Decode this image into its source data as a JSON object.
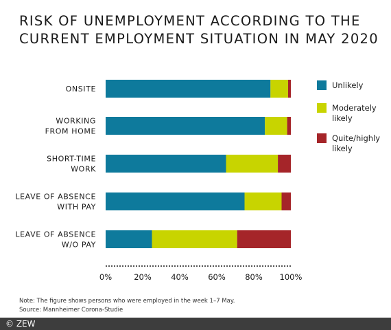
{
  "colors": {
    "unlikely": "#0e7a9c",
    "moderately": "#c8d400",
    "quite": "#a52529",
    "footer_bg": "#3d3d3d"
  },
  "chart_data": {
    "type": "bar",
    "orientation": "horizontal",
    "stacked": true,
    "title": "RISK OF UNEMPLOYMENT ACCORDING TO THE\nCURRENT EMPLOYMENT SITUATION IN MAY 2020",
    "categories": [
      [
        "ONSITE"
      ],
      [
        "WORKING",
        "FROM HOME"
      ],
      [
        "SHORT-TIME",
        "WORK"
      ],
      [
        "LEAVE OF ABSENCE",
        "WITH PAY"
      ],
      [
        "LEAVE OF ABSENCE",
        "W/O PAY"
      ]
    ],
    "series": [
      {
        "name": "Unlikely",
        "name_lines": [
          "Unlikely"
        ],
        "color": "#0e7a9c",
        "values": [
          89,
          86,
          65,
          75,
          25
        ]
      },
      {
        "name": "Moderately likely",
        "name_lines": [
          "Moderately",
          "likely"
        ],
        "color": "#c8d400",
        "values": [
          9.5,
          12,
          28,
          20,
          46
        ]
      },
      {
        "name": "Quite/highly likely",
        "name_lines": [
          "Quite/highly",
          "likely"
        ],
        "color": "#a52529",
        "values": [
          1.5,
          2,
          7,
          5,
          29
        ]
      }
    ],
    "xlim": [
      0,
      100
    ],
    "xticks": [
      "0%",
      "20%",
      "40%",
      "60%",
      "80%",
      "100%"
    ],
    "grid": false,
    "legend": "right"
  },
  "note": "Note: The figure shows persons who were employed in the week 1–7 May.",
  "source": "Source: Mannheimer Corona-Studie",
  "footer": "© ZEW"
}
